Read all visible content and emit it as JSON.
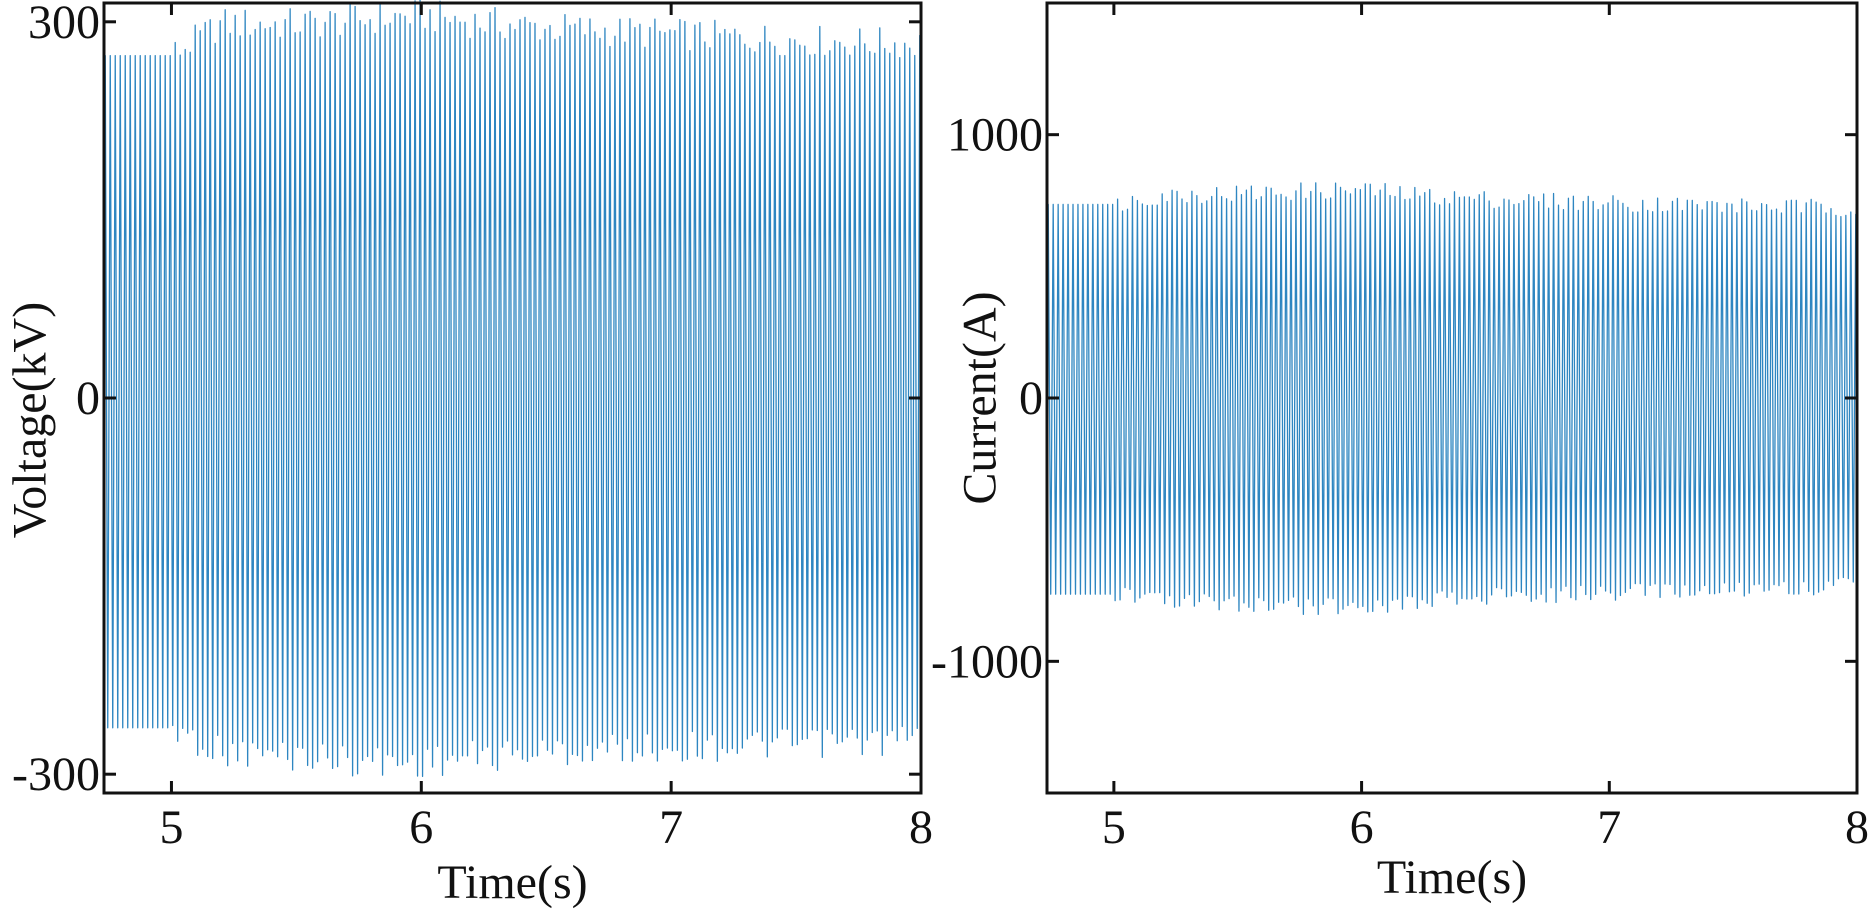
{
  "chart_data": [
    {
      "type": "line",
      "xlabel": "Time(s)",
      "ylabel": "Voltage(kV)",
      "xlim": [
        4.73,
        8.0
      ],
      "ylim": [
        -315,
        315
      ],
      "xticks": [
        5,
        6,
        7,
        8
      ],
      "xtick_labels": [
        "5",
        "6",
        "7",
        "8"
      ],
      "yticks": [
        -300,
        0,
        300
      ],
      "ytick_labels": [
        "-300",
        "0",
        "300"
      ],
      "grid": false,
      "series": [
        {
          "color": "#2e86c1",
          "frequency_hz": 50,
          "x_start": 4.73,
          "x_end": 8.0,
          "envelope_time": [
            4.73,
            5.0,
            5.2,
            5.5,
            5.8,
            6.0,
            6.2,
            6.5,
            7.0,
            7.5,
            8.0
          ],
          "envelope_upper": [
            273,
            273,
            298,
            298,
            302,
            305,
            300,
            295,
            290,
            285,
            282
          ],
          "envelope_lower": [
            -263,
            -263,
            -282,
            -285,
            -290,
            -290,
            -286,
            -282,
            -278,
            -276,
            -272
          ]
        }
      ]
    },
    {
      "type": "line",
      "xlabel": "Time(s)",
      "ylabel": "Current(A)",
      "xlim": [
        4.73,
        8.0
      ],
      "ylim": [
        -1500,
        1500
      ],
      "xticks": [
        5,
        6,
        7,
        8
      ],
      "xtick_labels": [
        "5",
        "6",
        "7",
        "8"
      ],
      "yticks": [
        -1000,
        0,
        1000
      ],
      "ytick_labels": [
        "-1000",
        "0",
        "1000"
      ],
      "grid": false,
      "series": [
        {
          "color": "#2e86c1",
          "frequency_hz": 50,
          "x_start": 4.73,
          "x_end": 8.0,
          "envelope_time": [
            4.73,
            5.0,
            5.2,
            5.5,
            5.8,
            6.0,
            6.2,
            6.5,
            7.0,
            7.5,
            8.0
          ],
          "envelope_upper": [
            735,
            735,
            770,
            775,
            785,
            790,
            770,
            755,
            740,
            728,
            720
          ],
          "envelope_lower": [
            -745,
            -745,
            -775,
            -780,
            -790,
            -790,
            -770,
            -755,
            -740,
            -725,
            -712
          ]
        }
      ]
    }
  ]
}
